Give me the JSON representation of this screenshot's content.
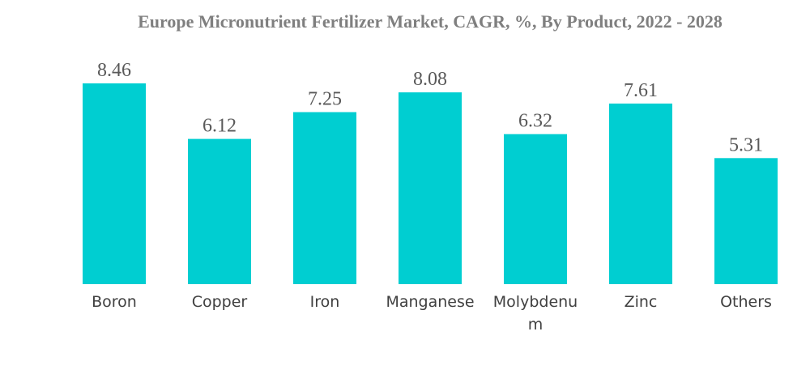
{
  "chart_data": {
    "type": "bar",
    "title": "Europe Micronutrient Fertilizer Market, CAGR, %, By Product, 2022 - 2028",
    "categories": [
      "Boron",
      "Copper",
      "Iron",
      "Manganese",
      "Molybdenum",
      "Zinc",
      "Others"
    ],
    "category_display_lines": [
      [
        "Boron"
      ],
      [
        "Copper"
      ],
      [
        "Iron"
      ],
      [
        "Manganese"
      ],
      [
        "Molybdenu",
        "m"
      ],
      [
        "Zinc"
      ],
      [
        "Others"
      ]
    ],
    "values": [
      8.46,
      6.12,
      7.25,
      8.08,
      6.32,
      7.61,
      5.31
    ],
    "value_labels": [
      "8.46",
      "6.12",
      "7.25",
      "8.08",
      "6.32",
      "7.61",
      "5.31"
    ],
    "xlabel": "",
    "ylabel": "",
    "ylim": [
      0,
      8.46
    ],
    "grid": false,
    "legend": "none",
    "bar_color": "#00CED1",
    "title_color": "#7F7F7F"
  }
}
